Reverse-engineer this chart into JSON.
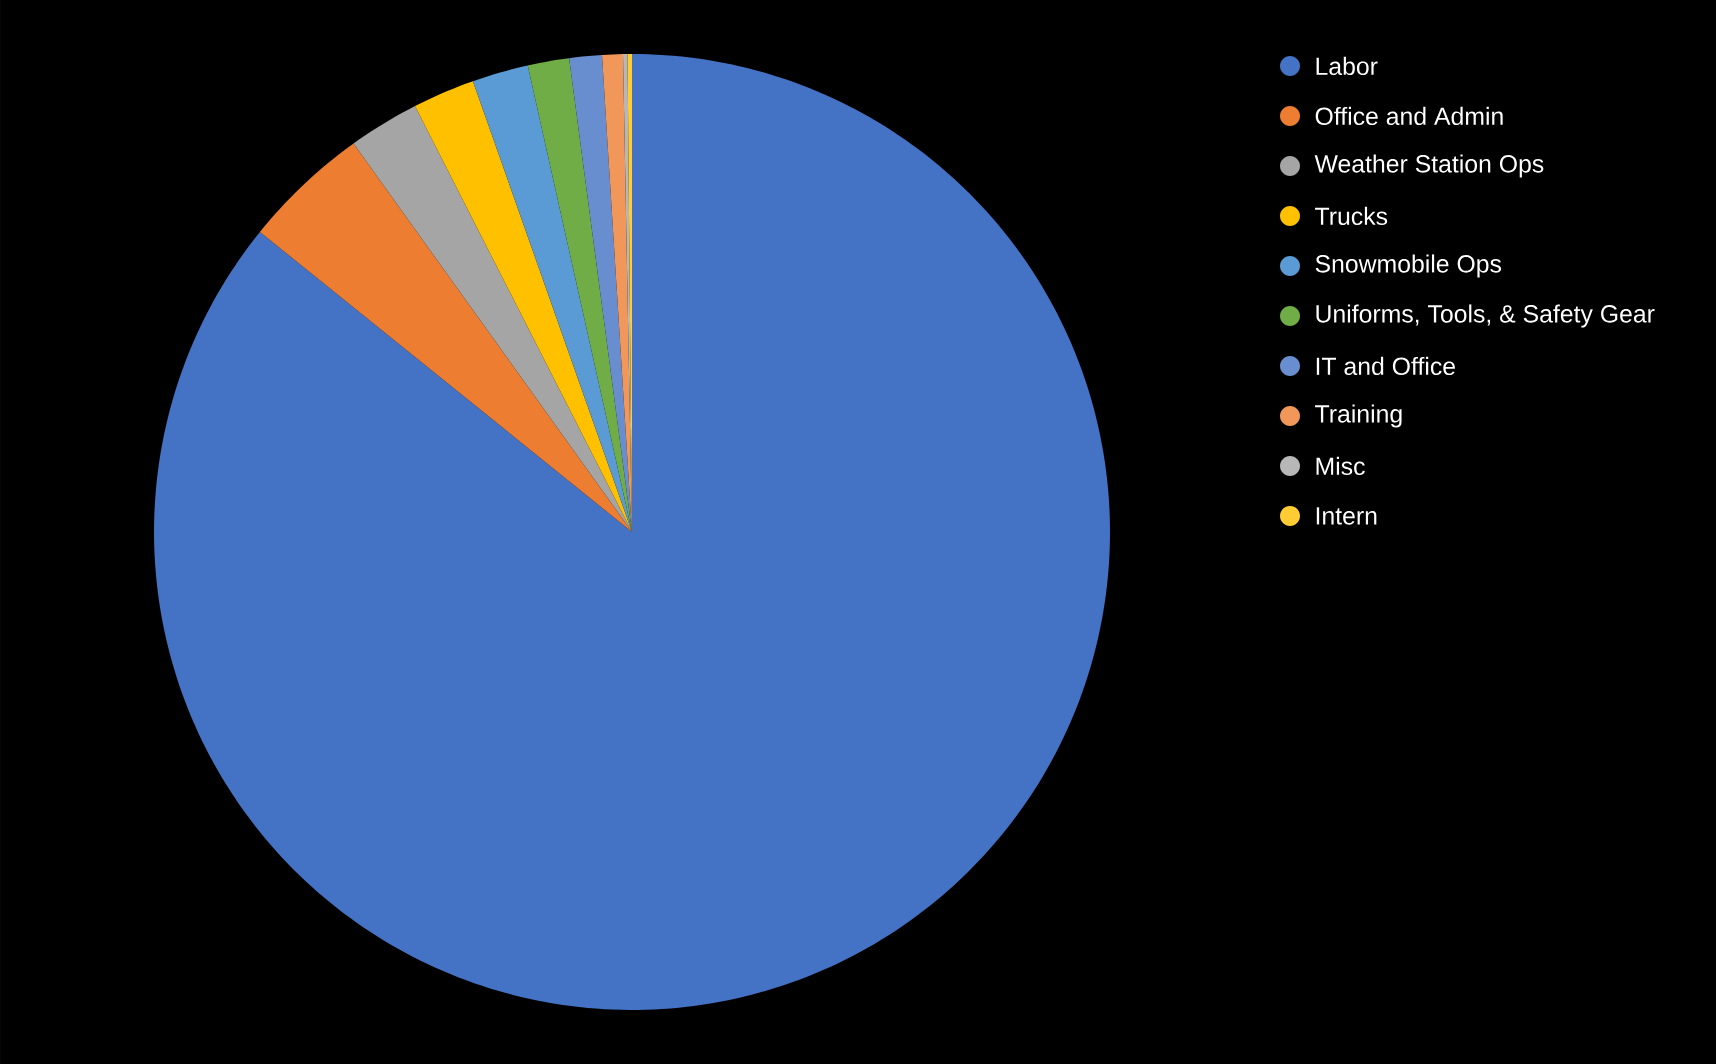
{
  "chart_data": {
    "type": "pie",
    "categories": [
      "Labor",
      "Office and Admin",
      "Weather Station Ops",
      "Trucks",
      "Snowmobile Ops",
      "Uniforms, Tools, & Safety Gear",
      "IT and Office",
      "Training",
      "Misc",
      "Intern"
    ],
    "values": [
      85.8,
      4.3,
      2.4,
      2.1,
      1.9,
      1.4,
      1.1,
      0.7,
      0.15,
      0.15
    ],
    "colors": [
      "#4472c4",
      "#ed7d31",
      "#a5a5a5",
      "#ffc000",
      "#5b9bd5",
      "#70ad47",
      "#698ed0",
      "#f1975a",
      "#b7b7b7",
      "#ffcd33"
    ],
    "legend": "right"
  }
}
